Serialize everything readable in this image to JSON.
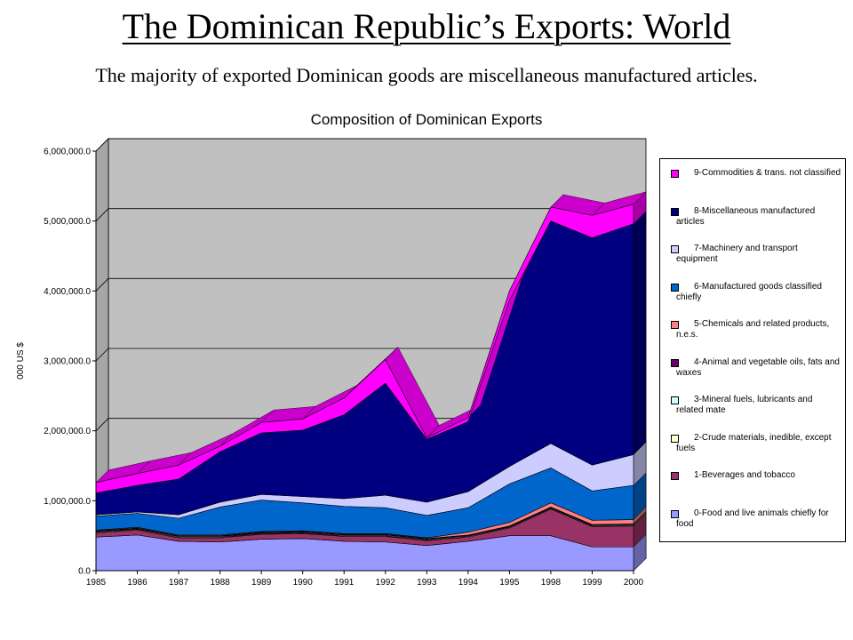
{
  "slide": {
    "title": "The Dominican Republic’s Exports: World",
    "subtitle": "The majority of exported Dominican goods are miscellaneous manufactured articles."
  },
  "chart_data": {
    "type": "area",
    "stacked": true,
    "three_d": true,
    "title": "Composition of Dominican Exports",
    "xlabel": "",
    "ylabel": "000 US $",
    "ylim": [
      0,
      6000000
    ],
    "y_ticks": [
      "0.0",
      "1,000,000.0",
      "2,000,000.0",
      "3,000,000.0",
      "4,000,000.0",
      "5,000,000.0",
      "6,000,000.0"
    ],
    "grid": true,
    "legend_position": "right",
    "categories": [
      "1985",
      "1986",
      "1987",
      "1988",
      "1989",
      "1990",
      "1991",
      "1992",
      "1993",
      "1994",
      "1995",
      "1998",
      "1999",
      "2000"
    ],
    "series": [
      {
        "name": "0-Food and live animals chiefly for food",
        "color": "#9999ff",
        "values": [
          480000,
          510000,
          420000,
          410000,
          450000,
          460000,
          420000,
          410000,
          360000,
          420000,
          500000,
          500000,
          340000,
          340000
        ]
      },
      {
        "name": "1-Beverages and tobacco",
        "color": "#993366",
        "values": [
          60000,
          70000,
          50000,
          60000,
          70000,
          70000,
          70000,
          80000,
          70000,
          60000,
          110000,
          380000,
          290000,
          300000
        ]
      },
      {
        "name": "2-Crude materials, inedible, except fuels",
        "color": "#ffffcc",
        "values": [
          10000,
          10000,
          10000,
          10000,
          10000,
          10000,
          10000,
          10000,
          10000,
          10000,
          10000,
          10000,
          10000,
          10000
        ]
      },
      {
        "name": "3-Mineral fuels, lubricants and related mate",
        "color": "#ccffff",
        "values": [
          10000,
          10000,
          10000,
          10000,
          10000,
          10000,
          10000,
          10000,
          10000,
          10000,
          10000,
          10000,
          10000,
          10000
        ]
      },
      {
        "name": "4-Animal and vegetable oils, fats and waxes",
        "color": "#660066",
        "values": [
          10000,
          10000,
          10000,
          10000,
          10000,
          10000,
          10000,
          10000,
          10000,
          10000,
          10000,
          10000,
          10000,
          10000
        ]
      },
      {
        "name": "5-Chemicals and related products, n.e.s.",
        "color": "#ff8080",
        "values": [
          10000,
          10000,
          10000,
          10000,
          10000,
          10000,
          10000,
          10000,
          10000,
          40000,
          50000,
          60000,
          60000,
          60000
        ]
      },
      {
        "name": "6-Manufactured goods classified chiefly",
        "color": "#0066cc",
        "values": [
          200000,
          200000,
          240000,
          400000,
          450000,
          400000,
          390000,
          370000,
          320000,
          350000,
          550000,
          500000,
          420000,
          490000
        ]
      },
      {
        "name": "7-Machinery and transport equipment",
        "color": "#ccccff",
        "values": [
          20000,
          20000,
          50000,
          70000,
          80000,
          90000,
          110000,
          180000,
          190000,
          230000,
          250000,
          350000,
          370000,
          440000
        ]
      },
      {
        "name": "8-Miscellaneous manufactured articles",
        "color": "#000080",
        "values": [
          310000,
          380000,
          510000,
          720000,
          880000,
          950000,
          1200000,
          1600000,
          900000,
          1000000,
          2380000,
          3180000,
          3250000,
          3300000
        ]
      },
      {
        "name": "9-Commodities & trans. not classified",
        "color": "#ff00ff",
        "values": [
          150000,
          170000,
          200000,
          80000,
          150000,
          160000,
          240000,
          340000,
          20000,
          60000,
          130000,
          200000,
          320000,
          280000
        ]
      }
    ]
  }
}
